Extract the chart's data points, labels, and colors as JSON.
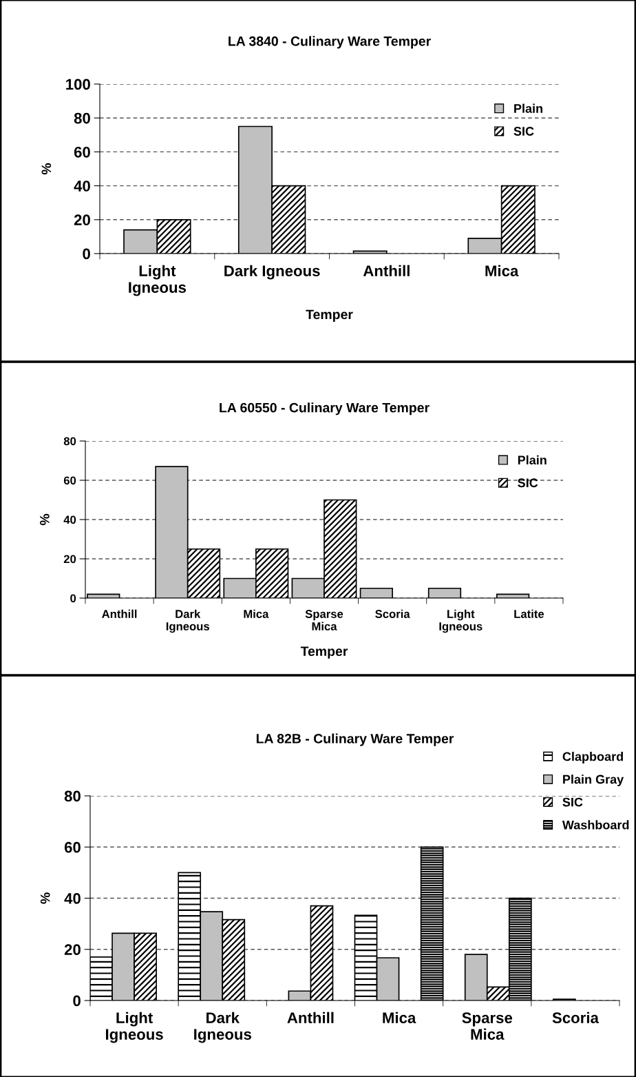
{
  "chart_data": [
    {
      "type": "bar",
      "title": "LA 3840 - Culinary Ware Temper",
      "xlabel": "Temper",
      "ylabel": "%",
      "categories": [
        "Light\nIgneous",
        "Dark Igneous",
        "Anthill",
        "Mica"
      ],
      "series": [
        {
          "name": "Plain",
          "color": "#c0c0c0",
          "values": [
            14,
            75,
            1.5,
            9
          ]
        },
        {
          "name": "SIC",
          "color": "#000000",
          "values": [
            20,
            40,
            null,
            40
          ]
        }
      ],
      "ylim": [
        0,
        100
      ],
      "yticks": [
        0,
        20,
        40,
        60,
        80,
        100
      ],
      "grid": "y",
      "legend": "top right"
    },
    {
      "type": "bar",
      "title": "LA 60550 - Culinary Ware Temper",
      "xlabel": "Temper",
      "ylabel": "%",
      "categories": [
        "Anthill",
        "Dark\nIgneous",
        "Mica",
        "Sparse\nMica",
        "Scoria",
        "Light\nIgneous",
        "Latite"
      ],
      "series": [
        {
          "name": "Plain",
          "color": "#c0c0c0",
          "values": [
            2,
            67,
            10,
            10,
            5,
            5,
            2
          ]
        },
        {
          "name": "SIC",
          "color": "#000000",
          "values": [
            null,
            25,
            25,
            50,
            null,
            null,
            null
          ]
        }
      ],
      "ylim": [
        0,
        80
      ],
      "yticks": [
        0,
        20,
        40,
        60,
        80
      ],
      "grid": "y",
      "legend": "top right"
    },
    {
      "type": "bar",
      "title": "LA 82B - Culinary Ware Temper",
      "ylabel": "%",
      "categories": [
        "Light\nIgneous",
        "Dark\nIgneous",
        "Anthill",
        "Mica",
        "Sparse\nMica",
        "Scoria"
      ],
      "series": [
        {
          "name": "Clapboard",
          "color": "#000000",
          "values": [
            17,
            50,
            null,
            33.3,
            null,
            null
          ]
        },
        {
          "name": "Plain Gray",
          "color": "#c0c0c0",
          "values": [
            26.3,
            34.7,
            3.7,
            16.7,
            18,
            0.5
          ]
        },
        {
          "name": "SIC",
          "color": "#000000",
          "values": [
            26.3,
            31.6,
            37,
            null,
            5.3,
            null
          ]
        },
        {
          "name": "Washboard",
          "color": "#000000",
          "values": [
            null,
            null,
            null,
            60,
            40,
            null
          ]
        }
      ],
      "ylim": [
        0,
        80
      ],
      "yticks": [
        0,
        20,
        40,
        60,
        80
      ],
      "grid": "y",
      "legend": "top right"
    }
  ]
}
